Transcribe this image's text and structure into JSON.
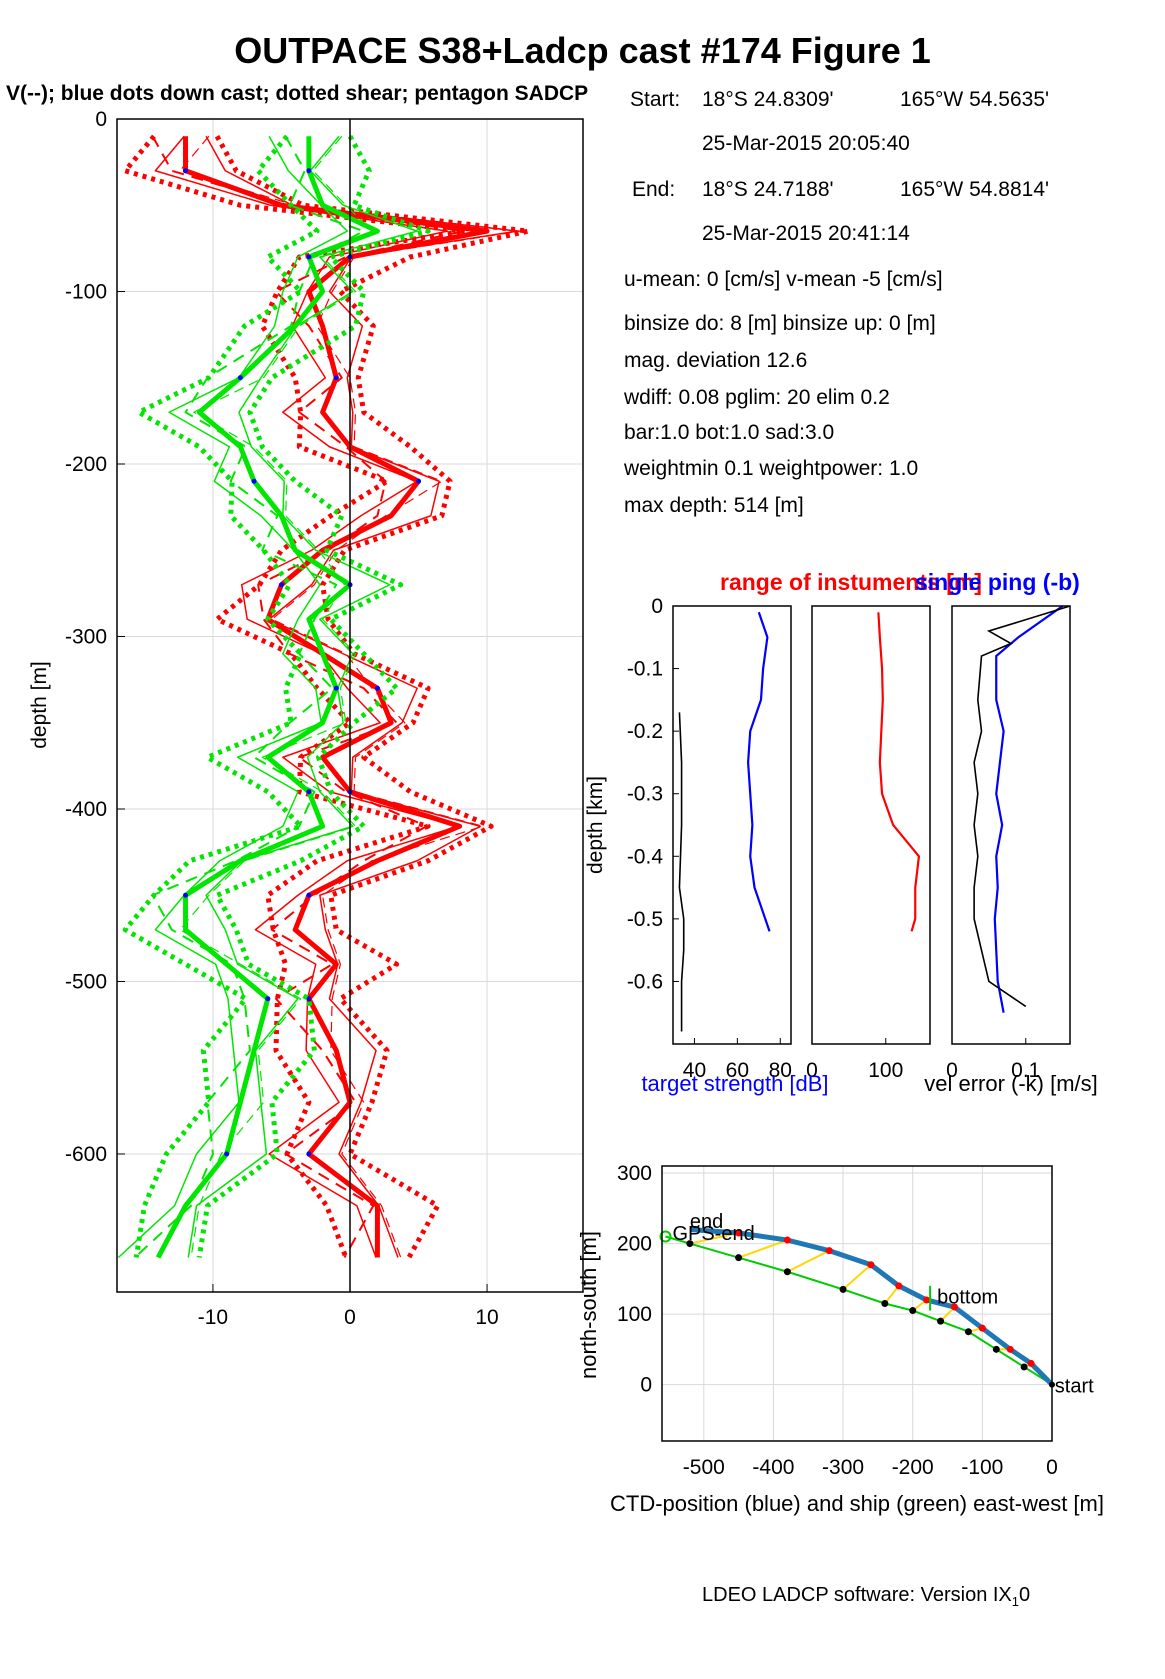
{
  "title": "OUTPACE S38+Ladcp cast #174  Figure 1",
  "subtitle": "V(--); blue dots down cast; dotted shear; pentagon SADCP",
  "info": {
    "start_label": "Start:",
    "start_lat": "18°S 24.8309'",
    "start_lon": "165°W 54.5635'",
    "start_time": "25-Mar-2015 20:05:40",
    "end_label": "End:",
    "end_lat": "18°S 24.7188'",
    "end_lon": "165°W 54.8814'",
    "end_time": "25-Mar-2015 20:41:14",
    "u_mean": "u-mean:   0 [cm/s]    v-mean  -5 [cm/s]",
    "binsize": "binsize do: 8 [m]  binsize up:  0 [m]",
    "mag_dev": "mag. deviation 12.6",
    "wdiff": "wdiff: 0.08  pglim: 20  elim 0.2",
    "bar": "  bar:1.0 bot:1.0 sad:3.0",
    "weight": "weightmin 0.1  weightpower: 1.0",
    "max_depth": "max depth: 514 [m]"
  },
  "footer": "LDEO LADCP software: Version IX",
  "footer_sub": "1",
  "footer_tail": "0",
  "colors": {
    "u": "#ff0000",
    "v": "#00e600",
    "dots": "#0000ff",
    "target": "#0000ff",
    "range": "#ff0000",
    "error": "#000000",
    "ctd": "#1f77b4",
    "ship": "#00cc00",
    "link": "#ffd700"
  },
  "chart_data": [
    {
      "id": "velocity_profile",
      "type": "line",
      "xlabel": "",
      "ylabel": "depth [m]",
      "xlim": [
        -17,
        17
      ],
      "ylim": [
        -680,
        0
      ],
      "xticks": [
        -10,
        0,
        10
      ],
      "yticks": [
        0,
        -100,
        -200,
        -300,
        -400,
        -500,
        -600
      ],
      "grid": true,
      "series": [
        {
          "name": "U",
          "color": "#ff0000",
          "depth": [
            -10,
            -30,
            -50,
            -65,
            -80,
            -100,
            -120,
            -150,
            -170,
            -190,
            -210,
            -230,
            -250,
            -270,
            -290,
            -310,
            -330,
            -350,
            -370,
            -390,
            -410,
            -430,
            -450,
            -470,
            -490,
            -510,
            -540,
            -570,
            -600,
            -630,
            -660
          ],
          "values": [
            -12,
            -12,
            -5,
            10,
            0,
            -3,
            -2,
            -1,
            -2,
            0,
            5,
            3,
            -2,
            -5,
            -6,
            -2,
            2,
            3,
            -2,
            0,
            8,
            2,
            -3,
            -4,
            -1,
            -3,
            -1,
            0,
            -3,
            2,
            2
          ]
        },
        {
          "name": "V",
          "color": "#00e600",
          "depth": [
            -10,
            -30,
            -50,
            -65,
            -80,
            -100,
            -120,
            -150,
            -170,
            -190,
            -210,
            -230,
            -250,
            -270,
            -290,
            -310,
            -330,
            -350,
            -370,
            -390,
            -410,
            -430,
            -450,
            -470,
            -490,
            -510,
            -540,
            -570,
            -600,
            -630,
            -660
          ],
          "values": [
            -3,
            -3,
            -2,
            2,
            -3,
            -2,
            -4,
            -8,
            -11,
            -8,
            -7,
            -5,
            -4,
            0,
            -3,
            -2,
            -1,
            -2,
            -6,
            -3,
            -2,
            -8,
            -12,
            -12,
            -9,
            -6,
            -7,
            -8,
            -9,
            -12,
            -14
          ]
        }
      ]
    },
    {
      "id": "target_strength",
      "type": "line",
      "title": "range of instuments [m]",
      "title2": "single ping (-b)",
      "xlabel": "target strength [dB]",
      "ylabel": "depth [km]",
      "xlim": [
        30,
        85
      ],
      "ylim": [
        -0.7,
        0
      ],
      "xticks": [
        40,
        60,
        80
      ],
      "yticks": [
        0,
        -0.1,
        -0.2,
        -0.3,
        -0.4,
        -0.5,
        -0.6
      ],
      "series": [
        {
          "name": "target strength",
          "color": "#0000ff",
          "depth": [
            -0.01,
            -0.05,
            -0.1,
            -0.15,
            -0.2,
            -0.25,
            -0.3,
            -0.35,
            -0.4,
            -0.45,
            -0.5,
            -0.52
          ],
          "values": [
            70,
            74,
            72,
            71,
            66,
            65,
            66,
            67,
            66,
            68,
            73,
            75
          ]
        },
        {
          "name": "",
          "color": "#000000",
          "depth": [
            -0.17,
            -0.25,
            -0.35,
            -0.45,
            -0.5,
            -0.55,
            -0.6,
            -0.65,
            -0.68
          ],
          "values": [
            33,
            34,
            34,
            33,
            35,
            35,
            34,
            34,
            34
          ]
        }
      ]
    },
    {
      "id": "range",
      "type": "line",
      "xlabel": "",
      "xlim": [
        0,
        160
      ],
      "xticks": [
        0,
        100
      ],
      "ylim": [
        -0.7,
        0
      ],
      "series": [
        {
          "name": "range",
          "color": "#ff0000",
          "depth": [
            -0.01,
            -0.05,
            -0.1,
            -0.15,
            -0.2,
            -0.25,
            -0.3,
            -0.35,
            -0.4,
            -0.45,
            -0.5,
            -0.52
          ],
          "values": [
            90,
            92,
            95,
            96,
            94,
            92,
            95,
            110,
            145,
            140,
            140,
            135
          ]
        }
      ]
    },
    {
      "id": "vel_error",
      "type": "line",
      "xlabel": "vel error (-k) [m/s]",
      "xlim": [
        0,
        0.16
      ],
      "xticks": [
        0,
        0.1
      ],
      "ylim": [
        -0.7,
        0
      ],
      "series": [
        {
          "name": "single ping",
          "color": "#0000ff",
          "depth": [
            -0.0,
            -0.05,
            -0.08,
            -0.15,
            -0.2,
            -0.25,
            -0.3,
            -0.35,
            -0.4,
            -0.45,
            -0.5,
            -0.55,
            -0.6,
            -0.65
          ],
          "values": [
            0.15,
            0.09,
            0.06,
            0.06,
            0.07,
            0.065,
            0.06,
            0.068,
            0.06,
            0.062,
            0.058,
            0.06,
            0.062,
            0.07
          ]
        },
        {
          "name": "vel error",
          "color": "#000000",
          "depth": [
            -0.0,
            -0.04,
            -0.06,
            -0.08,
            -0.15,
            -0.2,
            -0.25,
            -0.3,
            -0.35,
            -0.4,
            -0.45,
            -0.5,
            -0.55,
            -0.6,
            -0.64
          ],
          "values": [
            0.16,
            0.05,
            0.08,
            0.04,
            0.035,
            0.04,
            0.03,
            0.035,
            0.03,
            0.035,
            0.03,
            0.03,
            0.04,
            0.05,
            0.1
          ]
        }
      ]
    },
    {
      "id": "positions",
      "type": "line",
      "xlabel": "CTD-position (blue) and ship (green) east-west [m]",
      "ylabel": "north-south [m]",
      "xlim": [
        -560,
        0
      ],
      "ylim": [
        -80,
        310
      ],
      "xticks": [
        -500,
        -400,
        -300,
        -200,
        -100,
        0
      ],
      "yticks": [
        0,
        100,
        200,
        300
      ],
      "annotations": [
        "end",
        "GPS-end",
        "bottom",
        "start"
      ],
      "series": [
        {
          "name": "CTD-position",
          "color": "#1f77b4",
          "x": [
            0,
            -30,
            -60,
            -100,
            -140,
            -180,
            -220,
            -260,
            -320,
            -380,
            -450,
            -520
          ],
          "y": [
            0,
            30,
            50,
            80,
            110,
            120,
            140,
            170,
            190,
            205,
            215,
            220
          ]
        },
        {
          "name": "ship",
          "color": "#00cc00",
          "x": [
            0,
            -40,
            -80,
            -120,
            -160,
            -200,
            -240,
            -300,
            -380,
            -450,
            -520,
            -555
          ],
          "y": [
            0,
            25,
            50,
            75,
            90,
            105,
            115,
            135,
            160,
            180,
            200,
            210
          ]
        }
      ]
    }
  ]
}
